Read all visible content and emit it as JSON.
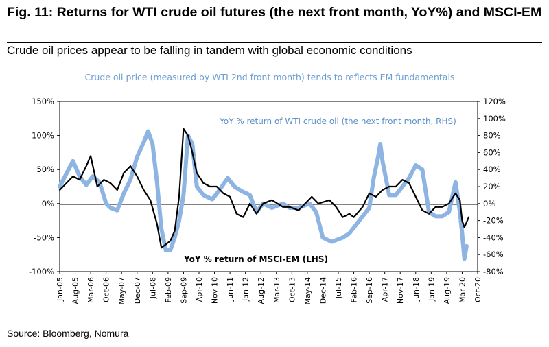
{
  "figure": {
    "title": "Fig. 11: Returns for WTI crude oil futures (the next front month, YoY%) and MSCI-EM",
    "subtitle": "Crude oil prices appear to be falling in tandem with global economic conditions",
    "source": "Source: Bloomberg, Nomura"
  },
  "chart_data": {
    "type": "line",
    "title": "Crude oil price (measured by WTI 2nd front month) tends to reflects EM fundamentals",
    "title_color": "#6b9fd2",
    "x_ticks": [
      "Jan-05",
      "Aug-05",
      "Mar-06",
      "Oct-06",
      "May-07",
      "Dec-07",
      "Jul-08",
      "Feb-09",
      "Sep-09",
      "Apr-10",
      "Nov-10",
      "Jun-11",
      "Jan-12",
      "Aug-12",
      "Mar-13",
      "Oct-13",
      "May-14",
      "Dec-14",
      "Jul-15",
      "Feb-16",
      "Sep-16",
      "Apr-17",
      "Nov-17",
      "Jun-18",
      "Jan-19",
      "Aug-19",
      "Mar-20",
      "Oct-20"
    ],
    "x_range": [
      "Jan-05",
      "Oct-20"
    ],
    "y_left": {
      "ticks": [
        "150%",
        "100%",
        "50%",
        "0%",
        "-50%",
        "-100%"
      ],
      "range": [
        -100,
        150
      ]
    },
    "y_right": {
      "ticks": [
        "120%",
        "100%",
        "80%",
        "60%",
        "40%",
        "20%",
        "0%",
        "-20%",
        "-40%",
        "-60%",
        "-80%"
      ],
      "range": [
        -80,
        120
      ]
    },
    "series": [
      {
        "name": "YoY % return of WTI crude oil (the next front month, RHS)",
        "axis": "right",
        "color": "#8db4e2",
        "points": [
          [
            "2005-01",
            20
          ],
          [
            "2005-04",
            35
          ],
          [
            "2005-07",
            50
          ],
          [
            "2005-10",
            32
          ],
          [
            "2006-01",
            22
          ],
          [
            "2006-04",
            32
          ],
          [
            "2006-07",
            25
          ],
          [
            "2006-10",
            0
          ],
          [
            "2006-12",
            -5
          ],
          [
            "2007-03",
            -8
          ],
          [
            "2007-06",
            12
          ],
          [
            "2007-09",
            28
          ],
          [
            "2007-12",
            55
          ],
          [
            "2008-03",
            72
          ],
          [
            "2008-05",
            85
          ],
          [
            "2008-07",
            70
          ],
          [
            "2008-09",
            25
          ],
          [
            "2008-11",
            -30
          ],
          [
            "2009-01",
            -55
          ],
          [
            "2009-03",
            -55
          ],
          [
            "2009-05",
            -40
          ],
          [
            "2009-07",
            -20
          ],
          [
            "2009-09",
            10
          ],
          [
            "2009-11",
            80
          ],
          [
            "2010-01",
            70
          ],
          [
            "2010-03",
            20
          ],
          [
            "2010-06",
            10
          ],
          [
            "2010-10",
            5
          ],
          [
            "2011-01",
            15
          ],
          [
            "2011-05",
            30
          ],
          [
            "2011-08",
            20
          ],
          [
            "2011-11",
            15
          ],
          [
            "2012-03",
            10
          ],
          [
            "2012-06",
            -10
          ],
          [
            "2012-09",
            0
          ],
          [
            "2013-01",
            -5
          ],
          [
            "2013-06",
            0
          ],
          [
            "2013-09",
            -5
          ],
          [
            "2014-01",
            -5
          ],
          [
            "2014-06",
            0
          ],
          [
            "2014-09",
            -10
          ],
          [
            "2014-12",
            -40
          ],
          [
            "2015-04",
            -45
          ],
          [
            "2015-09",
            -40
          ],
          [
            "2015-12",
            -35
          ],
          [
            "2016-03",
            -25
          ],
          [
            "2016-06",
            -15
          ],
          [
            "2016-09",
            -5
          ],
          [
            "2016-11",
            30
          ],
          [
            "2017-01",
            55
          ],
          [
            "2017-02",
            70
          ],
          [
            "2017-03",
            50
          ],
          [
            "2017-06",
            10
          ],
          [
            "2017-09",
            10
          ],
          [
            "2017-12",
            20
          ],
          [
            "2018-03",
            30
          ],
          [
            "2018-06",
            45
          ],
          [
            "2018-09",
            40
          ],
          [
            "2018-12",
            -10
          ],
          [
            "2019-03",
            -15
          ],
          [
            "2019-06",
            -15
          ],
          [
            "2019-09",
            -10
          ],
          [
            "2019-12",
            25
          ],
          [
            "2020-02",
            -10
          ],
          [
            "2020-03",
            -35
          ],
          [
            "2020-04",
            -65
          ],
          [
            "2020-05",
            -50
          ]
        ]
      },
      {
        "name": "YoY % return of MSCI-EM (LHS)",
        "axis": "left",
        "color": "#000000",
        "points": [
          [
            "2005-01",
            20
          ],
          [
            "2005-04",
            30
          ],
          [
            "2005-07",
            40
          ],
          [
            "2005-10",
            35
          ],
          [
            "2006-01",
            55
          ],
          [
            "2006-03",
            70
          ],
          [
            "2006-06",
            25
          ],
          [
            "2006-09",
            35
          ],
          [
            "2006-12",
            30
          ],
          [
            "2007-03",
            20
          ],
          [
            "2007-06",
            45
          ],
          [
            "2007-09",
            55
          ],
          [
            "2007-12",
            40
          ],
          [
            "2008-03",
            20
          ],
          [
            "2008-06",
            5
          ],
          [
            "2008-09",
            -30
          ],
          [
            "2008-11",
            -65
          ],
          [
            "2009-01",
            -60
          ],
          [
            "2009-03",
            -55
          ],
          [
            "2009-05",
            -40
          ],
          [
            "2009-07",
            10
          ],
          [
            "2009-09",
            110
          ],
          [
            "2009-11",
            100
          ],
          [
            "2010-01",
            75
          ],
          [
            "2010-03",
            45
          ],
          [
            "2010-06",
            30
          ],
          [
            "2010-09",
            25
          ],
          [
            "2010-12",
            25
          ],
          [
            "2011-03",
            15
          ],
          [
            "2011-06",
            10
          ],
          [
            "2011-09",
            -15
          ],
          [
            "2011-12",
            -20
          ],
          [
            "2012-03",
            0
          ],
          [
            "2012-06",
            -15
          ],
          [
            "2012-09",
            0
          ],
          [
            "2013-01",
            5
          ],
          [
            "2013-06",
            -5
          ],
          [
            "2013-09",
            -5
          ],
          [
            "2014-01",
            -10
          ],
          [
            "2014-04",
            0
          ],
          [
            "2014-07",
            10
          ],
          [
            "2014-10",
            0
          ],
          [
            "2015-03",
            5
          ],
          [
            "2015-06",
            -5
          ],
          [
            "2015-09",
            -20
          ],
          [
            "2015-12",
            -15
          ],
          [
            "2016-02",
            -20
          ],
          [
            "2016-06",
            -5
          ],
          [
            "2016-09",
            15
          ],
          [
            "2016-12",
            10
          ],
          [
            "2017-03",
            20
          ],
          [
            "2017-06",
            25
          ],
          [
            "2017-09",
            25
          ],
          [
            "2017-12",
            35
          ],
          [
            "2018-03",
            30
          ],
          [
            "2018-06",
            10
          ],
          [
            "2018-09",
            -10
          ],
          [
            "2018-12",
            -15
          ],
          [
            "2019-03",
            -5
          ],
          [
            "2019-06",
            -5
          ],
          [
            "2019-09",
            0
          ],
          [
            "2019-12",
            15
          ],
          [
            "2020-02",
            5
          ],
          [
            "2020-03",
            -25
          ],
          [
            "2020-04",
            -35
          ],
          [
            "2020-06",
            -20
          ]
        ]
      }
    ],
    "annotations": {
      "wti_label": "YoY % return of WTI crude oil (the next front month, RHS)",
      "em_label": "YoY % return of MSCI-EM (LHS)"
    },
    "grid": false,
    "legend": "inline labels"
  }
}
